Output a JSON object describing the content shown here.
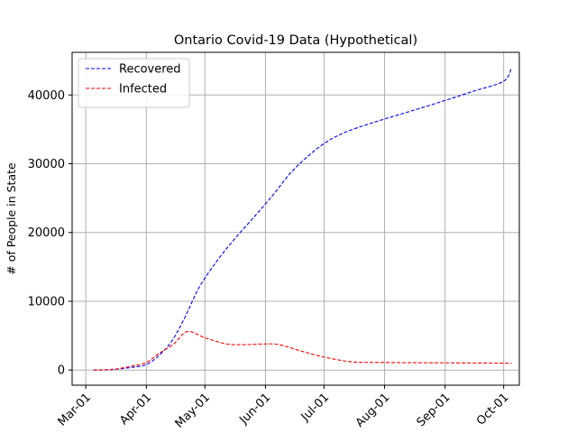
{
  "chart_data": {
    "type": "line",
    "title": "Ontario Covid-19 Data (Hypothetical)",
    "xlabel": "",
    "ylabel": "# of People in State",
    "x_tick_labels": [
      "Mar-01",
      "Apr-01",
      "May-01",
      "Jun-01",
      "Jul-01",
      "Aug-01",
      "Sep-01",
      "Oct-01"
    ],
    "x_tick_dates": [
      "2020-03-01",
      "2020-04-01",
      "2020-05-01",
      "2020-06-01",
      "2020-07-01",
      "2020-08-01",
      "2020-09-01",
      "2020-10-01"
    ],
    "xlim": [
      "2020-02-23",
      "2020-10-09"
    ],
    "ylim": [
      -2200,
      46200
    ],
    "y_ticks": [
      0,
      10000,
      20000,
      30000,
      40000
    ],
    "grid": true,
    "legend_position": "upper left",
    "series": [
      {
        "name": "Recovered",
        "color": "#0000ff",
        "linestyle": "dashed",
        "points": [
          {
            "x": "2020-03-05",
            "y": 0
          },
          {
            "x": "2020-03-15",
            "y": 100
          },
          {
            "x": "2020-03-25",
            "y": 400
          },
          {
            "x": "2020-04-01",
            "y": 800
          },
          {
            "x": "2020-04-07",
            "y": 2000
          },
          {
            "x": "2020-04-14",
            "y": 4200
          },
          {
            "x": "2020-04-21",
            "y": 7800
          },
          {
            "x": "2020-04-28",
            "y": 12000
          },
          {
            "x": "2020-05-07",
            "y": 15800
          },
          {
            "x": "2020-05-16",
            "y": 19000
          },
          {
            "x": "2020-05-26",
            "y": 22200
          },
          {
            "x": "2020-06-05",
            "y": 25500
          },
          {
            "x": "2020-06-14",
            "y": 28700
          },
          {
            "x": "2020-06-24",
            "y": 31400
          },
          {
            "x": "2020-07-03",
            "y": 33300
          },
          {
            "x": "2020-07-12",
            "y": 34600
          },
          {
            "x": "2020-07-22",
            "y": 35600
          },
          {
            "x": "2020-08-01",
            "y": 36500
          },
          {
            "x": "2020-08-15",
            "y": 37700
          },
          {
            "x": "2020-09-01",
            "y": 39200
          },
          {
            "x": "2020-09-15",
            "y": 40500
          },
          {
            "x": "2020-10-01",
            "y": 42000
          },
          {
            "x": "2020-10-05",
            "y": 44000
          }
        ]
      },
      {
        "name": "Infected",
        "color": "#ff0000",
        "linestyle": "dashed",
        "points": [
          {
            "x": "2020-03-05",
            "y": 0
          },
          {
            "x": "2020-03-15",
            "y": 100
          },
          {
            "x": "2020-03-25",
            "y": 600
          },
          {
            "x": "2020-04-01",
            "y": 1100
          },
          {
            "x": "2020-04-08",
            "y": 2500
          },
          {
            "x": "2020-04-15",
            "y": 3800
          },
          {
            "x": "2020-04-22",
            "y": 5600
          },
          {
            "x": "2020-05-01",
            "y": 4700
          },
          {
            "x": "2020-05-12",
            "y": 3800
          },
          {
            "x": "2020-05-22",
            "y": 3700
          },
          {
            "x": "2020-06-01",
            "y": 3800
          },
          {
            "x": "2020-06-08",
            "y": 3700
          },
          {
            "x": "2020-06-20",
            "y": 2700
          },
          {
            "x": "2020-07-01",
            "y": 1900
          },
          {
            "x": "2020-07-15",
            "y": 1200
          },
          {
            "x": "2020-08-01",
            "y": 1100
          },
          {
            "x": "2020-09-01",
            "y": 1050
          },
          {
            "x": "2020-10-05",
            "y": 1000
          }
        ]
      }
    ]
  }
}
